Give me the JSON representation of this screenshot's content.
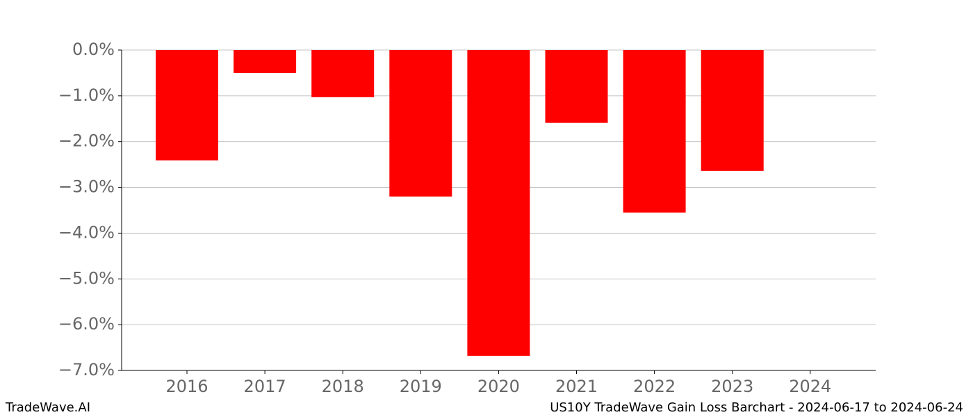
{
  "chart_data": {
    "type": "bar",
    "categories": [
      "2016",
      "2017",
      "2018",
      "2019",
      "2020",
      "2021",
      "2022",
      "2023",
      "2024"
    ],
    "values": [
      -2.41,
      -0.5,
      -1.03,
      -3.2,
      -6.68,
      -1.59,
      -3.55,
      -2.64,
      null
    ],
    "color": "#ff0000",
    "ylim": [
      -7,
      0
    ],
    "yticks": [
      {
        "value": 0,
        "label": "0.0%"
      },
      {
        "value": -1,
        "label": "−1.0%"
      },
      {
        "value": -2,
        "label": "−2.0%"
      },
      {
        "value": -3,
        "label": "−3.0%"
      },
      {
        "value": -4,
        "label": "−4.0%"
      },
      {
        "value": -5,
        "label": "−5.0%"
      },
      {
        "value": -6,
        "label": "−6.0%"
      },
      {
        "value": -7,
        "label": "−7.0%"
      }
    ],
    "grid": true,
    "footer_left": "TradeWave.AI",
    "footer_right": "US10Y TradeWave Gain Loss Barchart - 2024-06-17 to 2024-06-24"
  }
}
